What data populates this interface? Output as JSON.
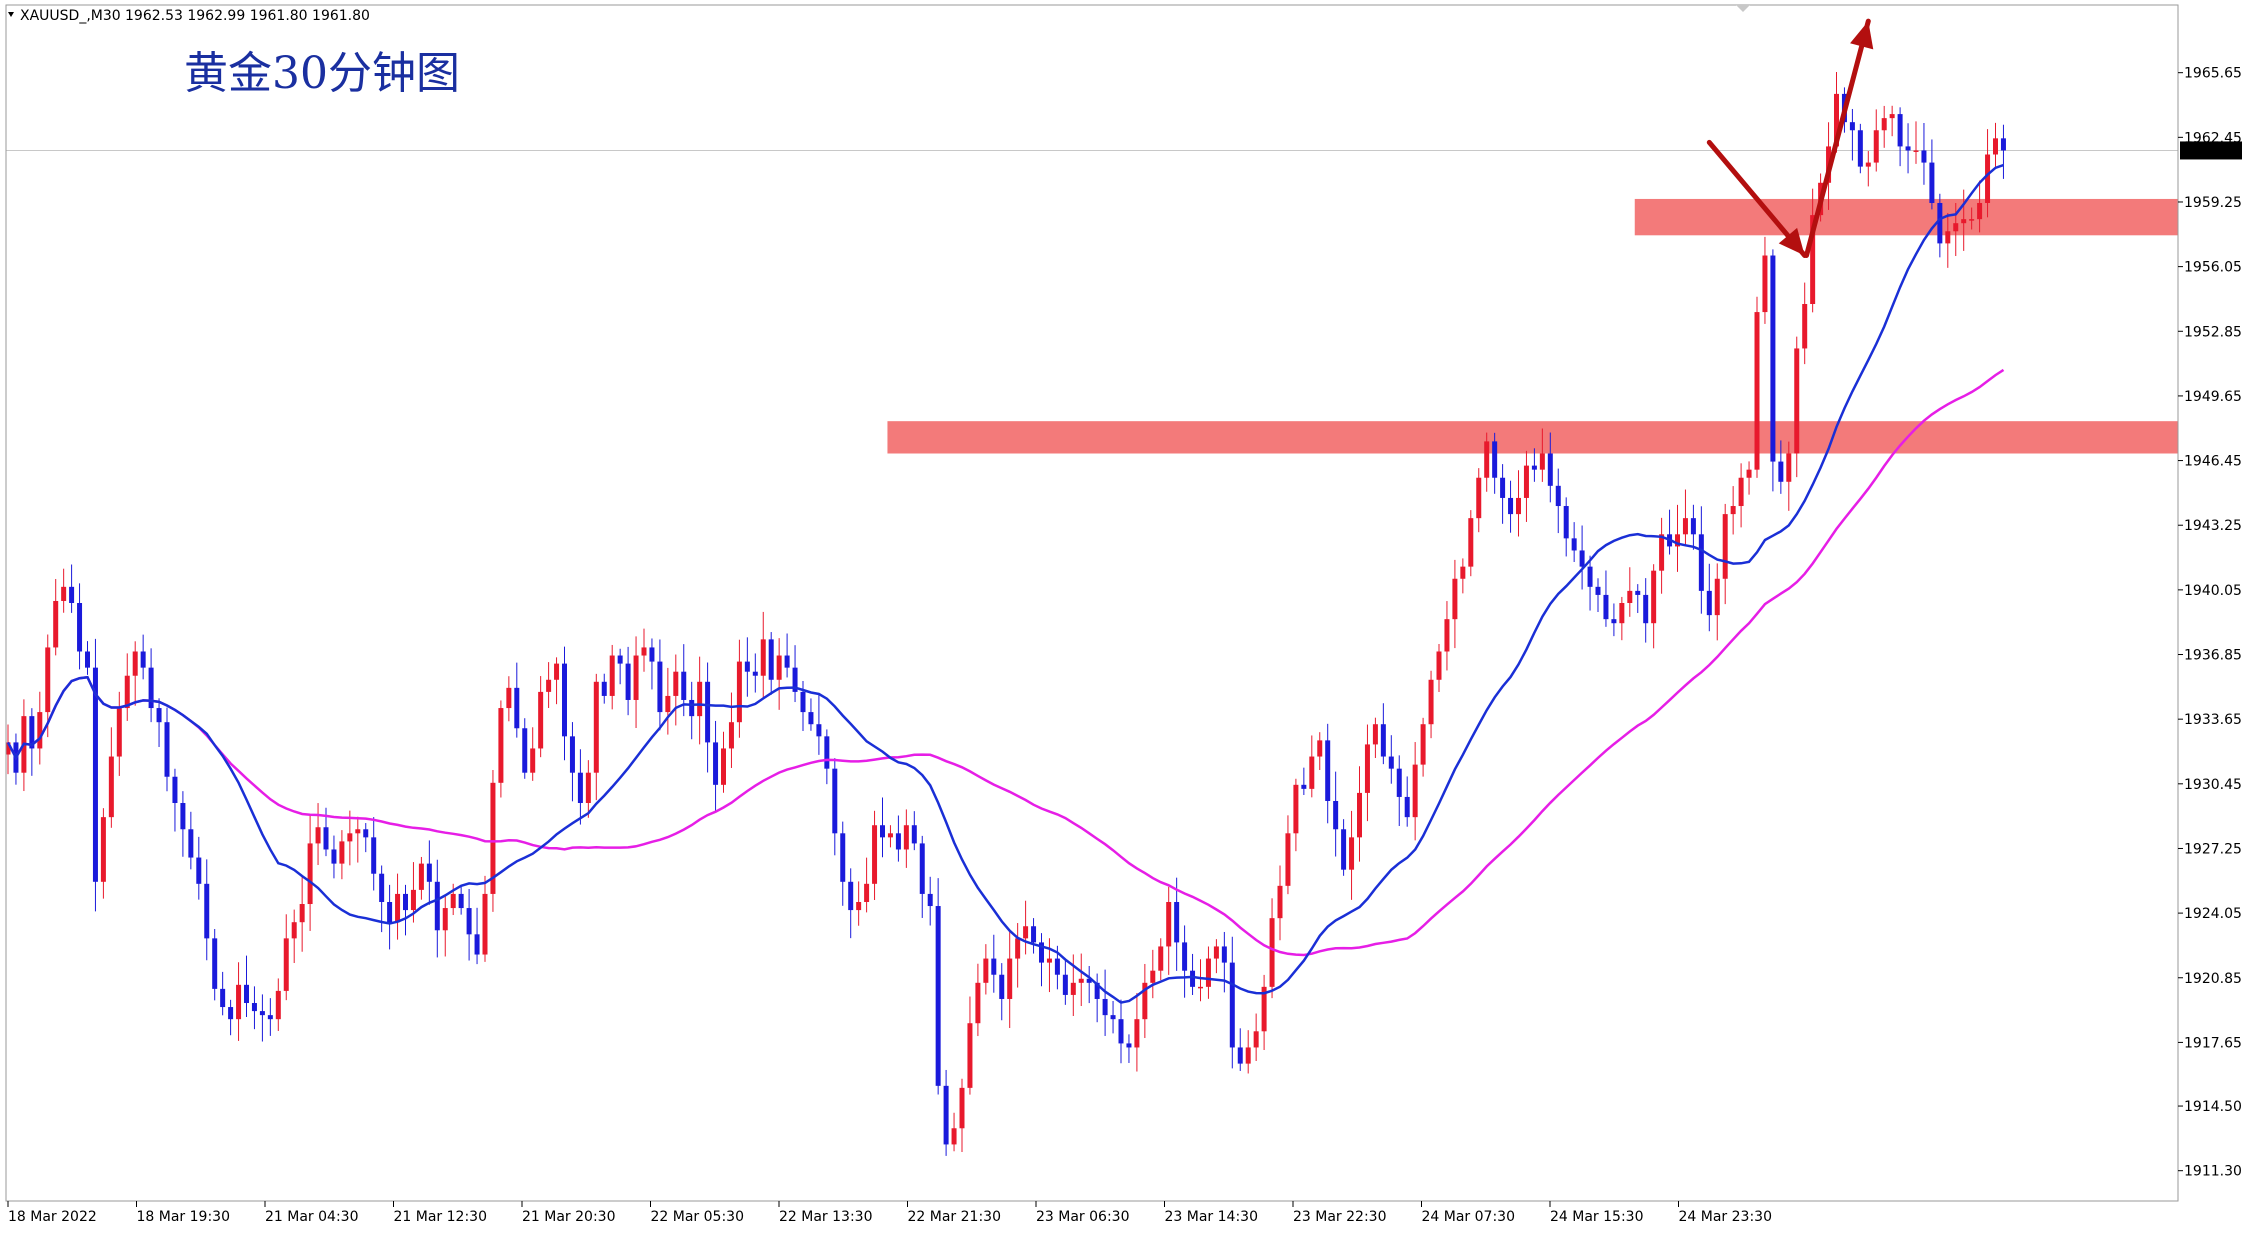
{
  "header": {
    "symbol": "XAUUSD_,M30",
    "ohlc": "1962.53 1962.99 1961.80 1961.80"
  },
  "chart_data": {
    "type": "candlestick",
    "title": "黄金30分钟图",
    "ylim": [
      1909.8,
      1969.0
    ],
    "y_ticks": [
      "1965.65",
      "1962.45",
      "1959.25",
      "1956.05",
      "1952.85",
      "1949.65",
      "1946.45",
      "1943.25",
      "1940.05",
      "1936.85",
      "1933.65",
      "1930.45",
      "1927.25",
      "1924.05",
      "1920.85",
      "1917.65",
      "1914.50",
      "1911.30"
    ],
    "x_ticks": [
      "18 Mar 2022",
      "18 Mar 19:30",
      "21 Mar 04:30",
      "21 Mar 12:30",
      "21 Mar 20:30",
      "22 Mar 05:30",
      "22 Mar 13:30",
      "22 Mar 21:30",
      "23 Mar 06:30",
      "23 Mar 14:30",
      "23 Mar 22:30",
      "24 Mar 07:30",
      "24 Mar 15:30",
      "24 Mar 23:30"
    ],
    "current_price": "1961.80",
    "colors": {
      "up": "#e8192c",
      "down": "#1a1adb",
      "ma_fast": "#1a2fd6",
      "ma_slow": "#e61ee6",
      "zone": "#f37a7a",
      "arrow": "#b30f0f",
      "grid": "#c8c8c8"
    },
    "candles_close": [
      1932.5,
      1931.0,
      1933.8,
      1932.2,
      1934.0,
      1937.2,
      1939.5,
      1940.2,
      1939.4,
      1937.0,
      1936.2,
      1925.6,
      1928.8,
      1931.8,
      1934.2,
      1935.8,
      1937.0,
      1936.2,
      1934.2,
      1933.5,
      1930.8,
      1929.5,
      1928.2,
      1926.8,
      1925.5,
      1922.8,
      1920.3,
      1919.4,
      1918.8,
      1920.5,
      1919.6,
      1919.2,
      1919.0,
      1918.8,
      1920.2,
      1922.8,
      1923.6,
      1924.5,
      1927.5,
      1928.3,
      1927.2,
      1926.5,
      1927.6,
      1928.0,
      1928.2,
      1927.8,
      1926.0,
      1924.6,
      1923.6,
      1925.0,
      1924.2,
      1925.2,
      1926.5,
      1925.6,
      1923.2,
      1924.3,
      1925.0,
      1924.3,
      1923.0,
      1922.0,
      1925.0,
      1930.5,
      1934.2,
      1935.2,
      1933.2,
      1931.0,
      1932.2,
      1935.0,
      1935.6,
      1936.4,
      1932.8,
      1931.0,
      1929.5,
      1931.0,
      1935.5,
      1934.8,
      1936.8,
      1936.4,
      1934.6,
      1936.8,
      1937.2,
      1936.5,
      1934.0,
      1934.8,
      1936.0,
      1934.6,
      1933.8,
      1935.5,
      1932.5,
      1930.4,
      1932.2,
      1933.5,
      1936.5,
      1936.0,
      1935.8,
      1937.6,
      1935.6,
      1936.8,
      1936.2,
      1935.0,
      1934.0,
      1933.4,
      1932.8,
      1931.2,
      1928.0,
      1925.6,
      1924.2,
      1924.6,
      1925.5,
      1928.4,
      1927.8,
      1928.0,
      1927.2,
      1928.4,
      1927.5,
      1925.0,
      1924.4,
      1915.5,
      1912.6,
      1913.4,
      1915.4,
      1918.6,
      1920.6,
      1921.8,
      1921.0,
      1919.8,
      1921.8,
      1922.8,
      1923.4,
      1922.6,
      1921.6,
      1921.8,
      1921.0,
      1920.0,
      1920.6,
      1920.8,
      1920.6,
      1919.8,
      1919.0,
      1918.8,
      1917.6,
      1917.4,
      1918.8,
      1920.6,
      1921.2,
      1922.4,
      1924.6,
      1922.6,
      1921.2,
      1920.4,
      1920.4,
      1921.8,
      1922.4,
      1921.6,
      1917.4,
      1916.6,
      1917.4,
      1918.2,
      1920.4,
      1923.8,
      1925.4,
      1928.0,
      1930.4,
      1930.2,
      1931.8,
      1932.6,
      1929.6,
      1928.2,
      1926.2,
      1927.8,
      1930.0,
      1932.4,
      1933.4,
      1931.8,
      1931.2,
      1929.8,
      1928.8,
      1931.4,
      1933.4,
      1935.6,
      1937.0,
      1938.6,
      1940.6,
      1941.2,
      1943.6,
      1945.6,
      1947.4,
      1945.6,
      1944.6,
      1943.8,
      1944.6,
      1946.2,
      1946.0,
      1946.8,
      1945.2,
      1944.2,
      1942.6,
      1942.0,
      1941.2,
      1940.2,
      1939.8,
      1938.6,
      1938.4,
      1939.4,
      1940.0,
      1939.8,
      1938.4,
      1941.0,
      1942.8,
      1942.2,
      1942.8,
      1943.6,
      1942.8,
      1940.0,
      1938.8,
      1940.6,
      1943.8,
      1944.2,
      1945.6,
      1946.0,
      1953.8,
      1956.6,
      1946.4,
      1945.4,
      1946.8,
      1952.0,
      1954.2,
      1958.6,
      1960.2,
      1962.0,
      1964.6,
      1963.2,
      1962.8,
      1961.0,
      1961.2,
      1962.8,
      1963.4,
      1963.6,
      1962.0,
      1961.8,
      1961.8,
      1961.2,
      1959.2,
      1957.2,
      1957.8,
      1958.2,
      1958.4,
      1958.4,
      1959.2,
      1961.6,
      1962.4,
      1961.8
    ]
  },
  "annotations": {
    "resistance_zone": [
      1957.6,
      1959.4
    ],
    "support_zone": [
      1946.8,
      1948.4
    ],
    "arrow_path": [
      [
        214,
        1962.2
      ],
      [
        226,
        1956.6
      ],
      [
        230,
        1962.4
      ],
      [
        234,
        1968.2
      ]
    ]
  }
}
